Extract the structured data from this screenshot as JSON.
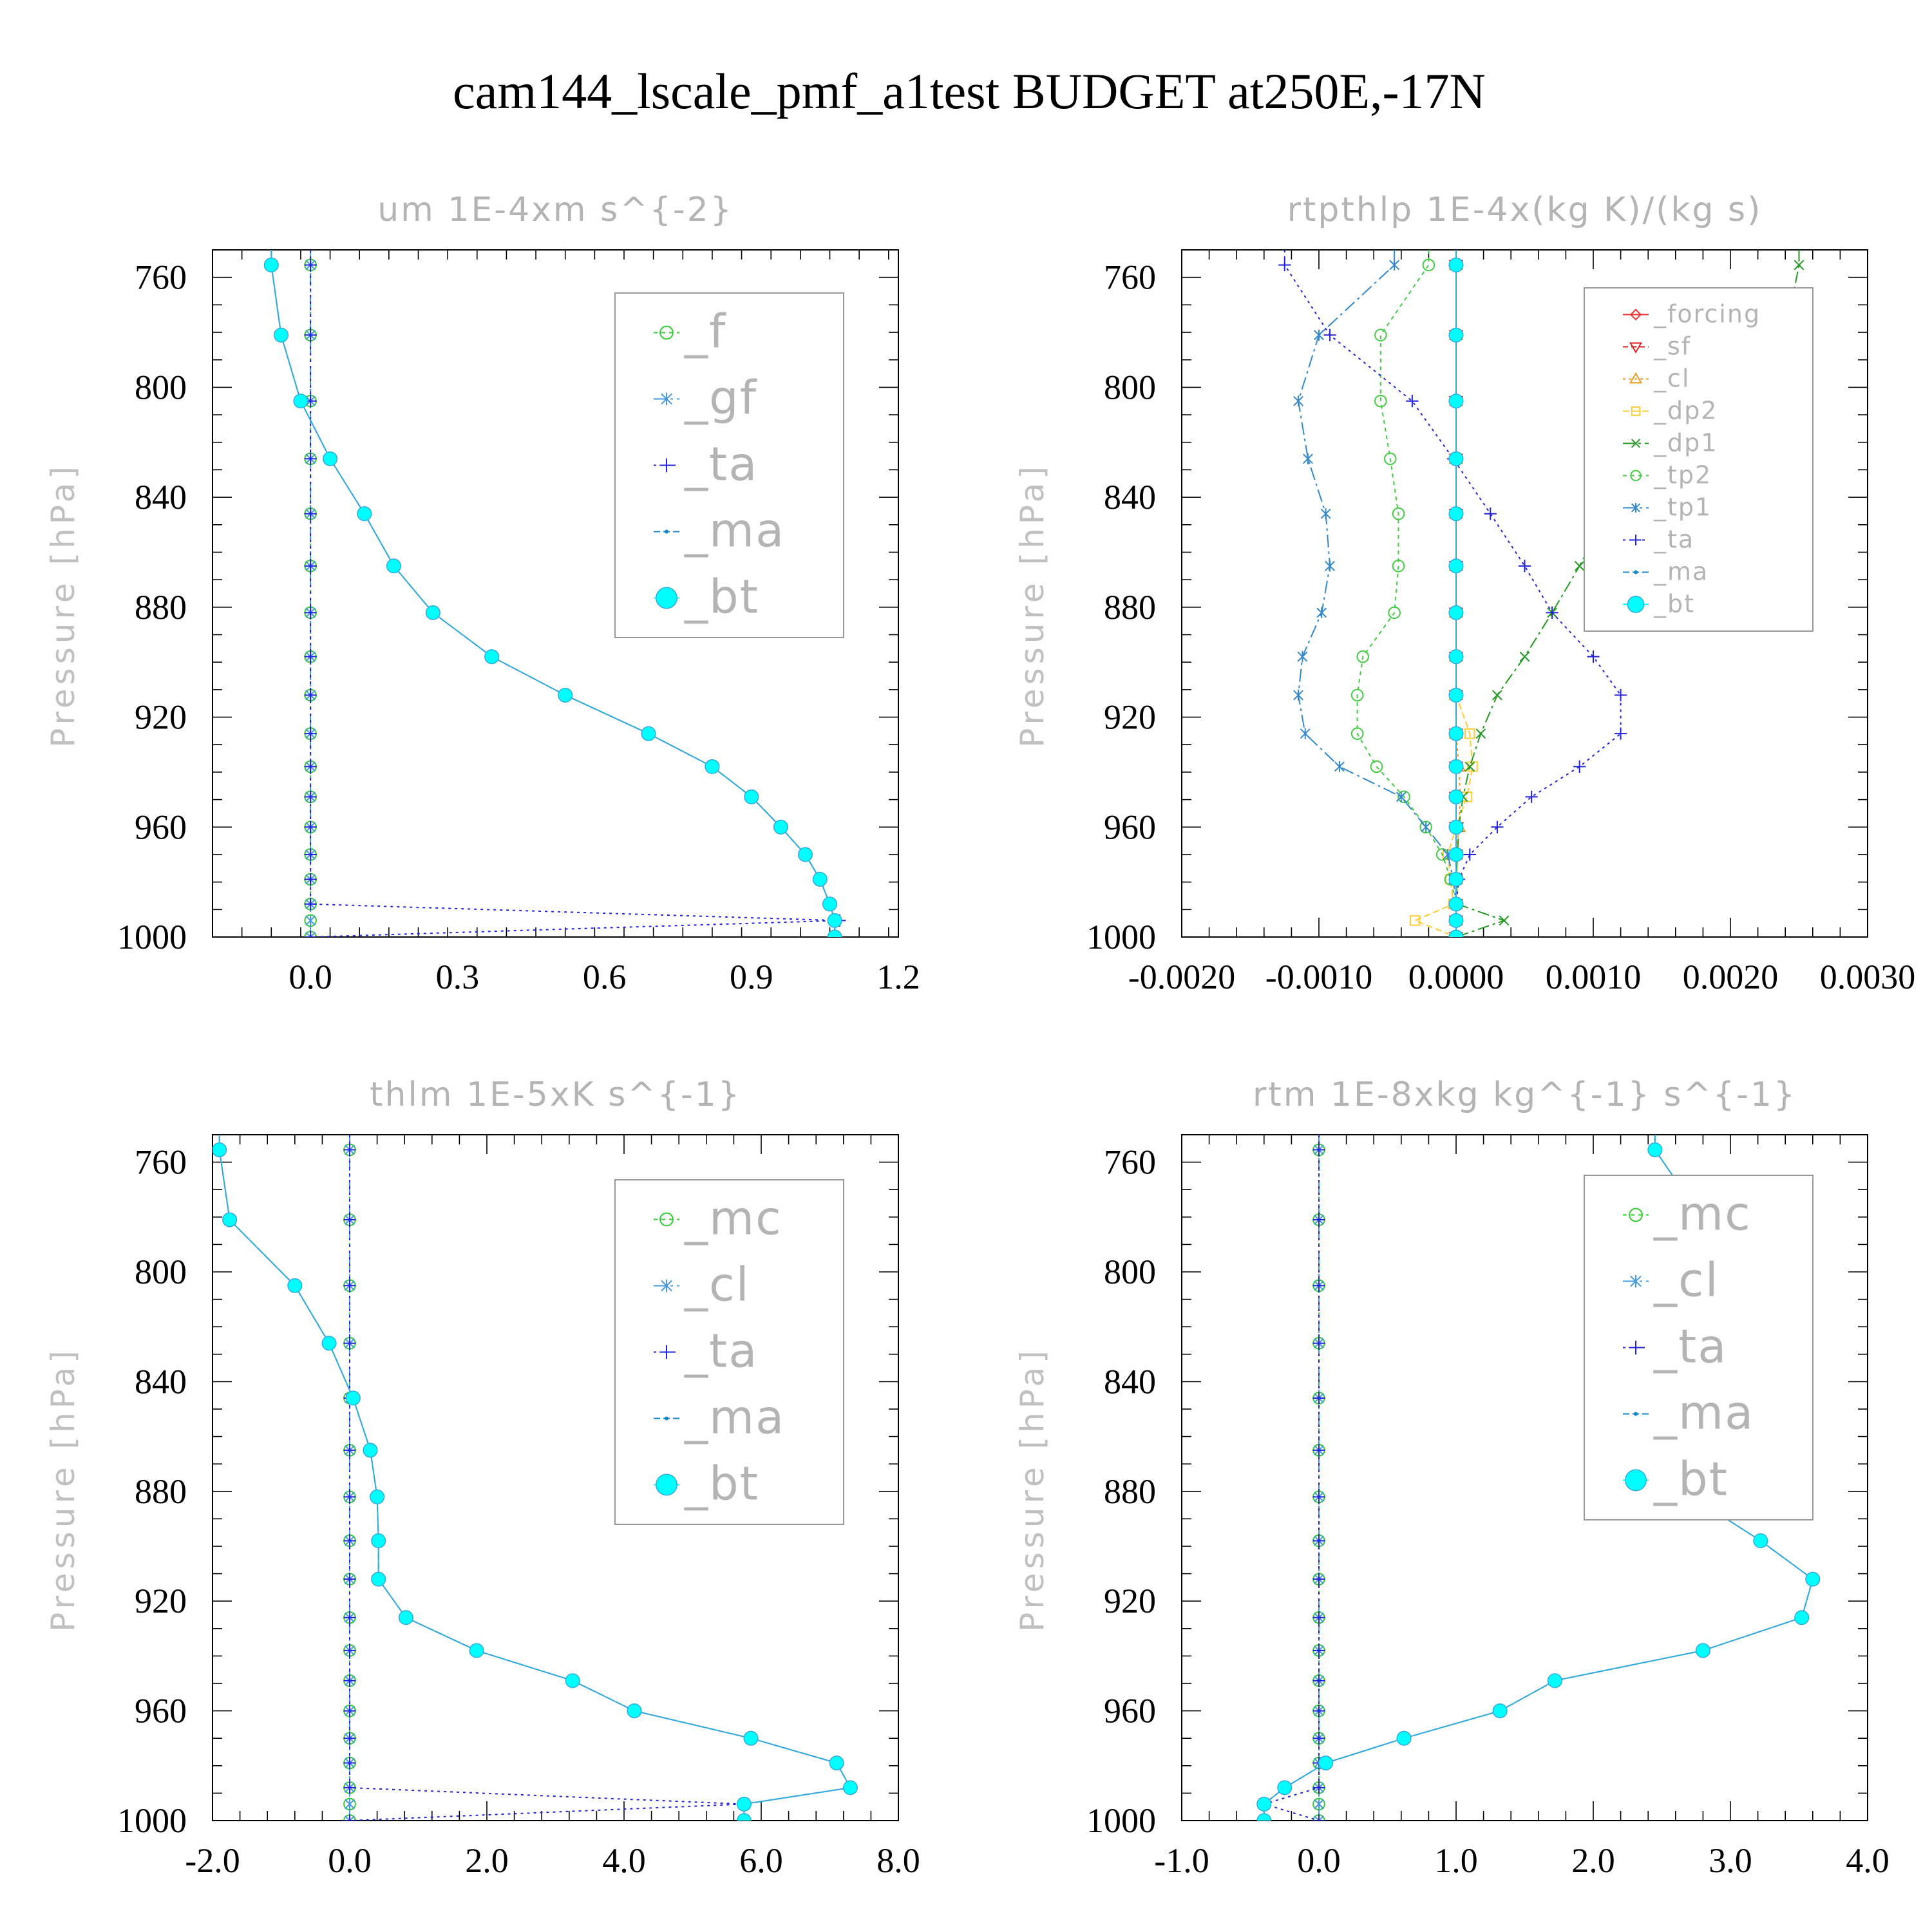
{
  "figure": {
    "title": "cam144_lscale_pmf_a1test  BUDGET at250E,-17N"
  },
  "chart_data": [
    {
      "type": "line",
      "title": "um  1E-4xm s^{-2}",
      "xlabel": "",
      "ylabel": "Pressure [hPa]",
      "xlim": [
        -0.2,
        1.2
      ],
      "ylim": [
        1000,
        750
      ],
      "xticks": [
        "0.0",
        "0.3",
        "0.6",
        "0.9",
        "1.2"
      ],
      "xtick_values": [
        0,
        0.3,
        0.6,
        0.9,
        1.2
      ],
      "yticks": [
        "760",
        "800",
        "840",
        "880",
        "920",
        "960",
        "1000"
      ],
      "ytick_values": [
        760,
        800,
        840,
        880,
        920,
        960,
        1000
      ],
      "legend_position": "top-right",
      "levels": [
        755.5,
        781,
        805,
        826,
        846,
        865,
        882,
        898,
        912,
        926,
        938,
        949,
        960,
        970,
        979,
        988,
        994,
        1000
      ],
      "series": [
        {
          "name": "_f",
          "color": "#33cc33",
          "marker": "circle",
          "dash": "6,6",
          "values": [
            0,
            0,
            0,
            0,
            0,
            0,
            0,
            0,
            0,
            0,
            0,
            0,
            0,
            0,
            0,
            0,
            0,
            0
          ]
        },
        {
          "name": "_gf",
          "color": "#4499dd",
          "marker": "star",
          "dash": "20,6,4,6",
          "values": [
            0,
            0,
            0,
            0,
            0,
            0,
            0,
            0,
            0,
            0,
            0,
            0,
            0,
            0,
            0,
            0,
            0,
            0
          ]
        },
        {
          "name": "_ta",
          "color": "#2222dd",
          "marker": "plus",
          "dash": "4,6",
          "values": [
            0,
            0,
            0,
            0,
            0,
            0,
            0,
            0,
            0,
            0,
            0,
            0,
            0,
            0,
            0,
            0,
            1.08,
            0
          ]
        },
        {
          "name": "_ma",
          "color": "#1188cc",
          "marker": "dot",
          "dash": "10,5",
          "values": [
            -0.08,
            -0.06,
            -0.02,
            0.04,
            0.11,
            0.17,
            0.25,
            0.37,
            0.52,
            0.69,
            0.82,
            0.9,
            0.96,
            1.01,
            1.04,
            1.06,
            1.07,
            1.07
          ]
        },
        {
          "name": "_bt",
          "color": "#00ffff",
          "marker": "bigdot",
          "dash": "",
          "values": [
            -0.08,
            -0.06,
            -0.02,
            0.04,
            0.11,
            0.17,
            0.25,
            0.37,
            0.52,
            0.69,
            0.82,
            0.9,
            0.96,
            1.01,
            1.04,
            1.06,
            1.07,
            1.07
          ]
        }
      ]
    },
    {
      "type": "line",
      "title": "rtpthlp  1E-4x(kg K)/(kg s)",
      "xlabel": "",
      "ylabel": "Pressure [hPa]",
      "xlim": [
        -0.002,
        0.003
      ],
      "ylim": [
        1000,
        750
      ],
      "xticks": [
        "-0.0020",
        "-0.0010",
        "0.0000",
        "0.0010",
        "0.0020",
        "0.0030"
      ],
      "xtick_values": [
        -0.002,
        -0.001,
        0,
        0.001,
        0.002,
        0.003
      ],
      "yticks": [
        "760",
        "800",
        "840",
        "880",
        "920",
        "960",
        "1000"
      ],
      "ytick_values": [
        760,
        800,
        840,
        880,
        920,
        960,
        1000
      ],
      "legend_position": "top-right",
      "levels": [
        755.5,
        781,
        805,
        826,
        846,
        865,
        882,
        898,
        912,
        926,
        938,
        949,
        960,
        970,
        979,
        988,
        994,
        1000
      ],
      "series": [
        {
          "name": "_forcing",
          "color": "#ee3333",
          "marker": "diamond",
          "dash": "",
          "values": [
            0,
            0,
            0,
            0,
            0,
            0,
            0,
            0,
            0,
            0,
            0,
            0,
            0,
            0,
            0,
            0,
            0,
            0
          ]
        },
        {
          "name": "_sf",
          "color": "#dd2222",
          "marker": "tri-down",
          "dash": "8,5",
          "values": [
            0,
            0,
            0,
            0,
            0,
            0,
            0,
            0,
            0,
            0,
            0,
            0,
            0,
            0,
            0,
            0,
            0,
            0
          ]
        },
        {
          "name": "_cl",
          "color": "#ee9922",
          "marker": "tri-up",
          "dash": "4,5",
          "values": [
            0,
            0,
            0,
            0,
            0,
            0,
            0,
            0,
            0,
            0,
            2e-05,
            3e-05,
            2e-05,
            0,
            0,
            0,
            0,
            0
          ]
        },
        {
          "name": "_dp2",
          "color": "#ffcc33",
          "marker": "square",
          "dash": "10,5",
          "values": [
            0,
            0,
            0,
            0,
            0,
            0,
            0,
            0,
            0,
            0.0001,
            0.00012,
            8e-05,
            0,
            -6e-05,
            -4e-05,
            -2e-05,
            -0.0003,
            0
          ]
        },
        {
          "name": "_dp1",
          "color": "#229922",
          "marker": "cross",
          "dash": "18,6,4,6",
          "values": [
            0.0025,
            0.0024,
            0.0019,
            0.0015,
            0.0011,
            0.0009,
            0.0007,
            0.0005,
            0.0003,
            0.00018,
            0.0001,
            5e-05,
            2e-05,
            1e-05,
            0,
            1e-05,
            0.00035,
            0
          ]
        },
        {
          "name": "_tp2",
          "color": "#44cc44",
          "marker": "circle",
          "dash": "6,6",
          "values": [
            -0.0002,
            -0.00055,
            -0.00055,
            -0.00048,
            -0.00042,
            -0.00042,
            -0.00045,
            -0.00068,
            -0.00072,
            -0.00072,
            -0.00058,
            -0.00038,
            -0.00022,
            -0.0001,
            -4e-05,
            0,
            0,
            0
          ]
        },
        {
          "name": "_tp1",
          "color": "#3388cc",
          "marker": "star",
          "dash": "20,6,4,6",
          "values": [
            -0.00045,
            -0.001,
            -0.00115,
            -0.00108,
            -0.00095,
            -0.00092,
            -0.00098,
            -0.00112,
            -0.00115,
            -0.0011,
            -0.00085,
            -0.0004,
            -0.00022,
            -6e-05,
            -2e-05,
            0,
            0,
            0
          ]
        },
        {
          "name": "_ta",
          "color": "#2222dd",
          "marker": "plus",
          "dash": "4,6",
          "values": [
            -0.00125,
            -0.00092,
            -0.00032,
            -2e-05,
            0.00025,
            0.0005,
            0.0007,
            0.001,
            0.0012,
            0.0012,
            0.0009,
            0.00055,
            0.0003,
            0.0001,
            2e-05,
            0,
            0,
            0
          ]
        },
        {
          "name": "_ma",
          "color": "#1188cc",
          "marker": "dot",
          "dash": "10,5",
          "values": [
            0,
            0,
            0,
            0,
            0,
            0,
            0,
            0,
            0,
            0,
            0,
            0,
            0,
            0,
            0,
            0,
            0,
            0
          ]
        },
        {
          "name": "_bt",
          "color": "#00ffff",
          "marker": "bigdot",
          "dash": "",
          "values": [
            0,
            0,
            0,
            0,
            0,
            0,
            0,
            0,
            0,
            0,
            0,
            0,
            0,
            0,
            0,
            0,
            0,
            0
          ]
        }
      ]
    },
    {
      "type": "line",
      "title": "thlm  1E-5xK s^{-1}",
      "xlabel": "",
      "ylabel": "Pressure [hPa]",
      "xlim": [
        -2.0,
        8.0
      ],
      "ylim": [
        1000,
        750
      ],
      "xticks": [
        "-2.0",
        "0.0",
        "2.0",
        "4.0",
        "6.0",
        "8.0"
      ],
      "xtick_values": [
        -2,
        0,
        2,
        4,
        6,
        8
      ],
      "yticks": [
        "760",
        "800",
        "840",
        "880",
        "920",
        "960",
        "1000"
      ],
      "ytick_values": [
        760,
        800,
        840,
        880,
        920,
        960,
        1000
      ],
      "legend_position": "top-right",
      "levels": [
        755.5,
        781,
        805,
        826,
        846,
        865,
        882,
        898,
        912,
        926,
        938,
        949,
        960,
        970,
        979,
        988,
        994,
        1000
      ],
      "series": [
        {
          "name": "_mc",
          "color": "#33cc33",
          "marker": "circle",
          "dash": "6,6",
          "values": [
            0,
            0,
            0,
            0,
            0,
            0,
            0,
            0,
            0,
            0,
            0,
            0,
            0,
            0,
            0,
            0,
            0,
            0
          ]
        },
        {
          "name": "_cl",
          "color": "#4499dd",
          "marker": "star",
          "dash": "20,6,4,6",
          "values": [
            0,
            0,
            0,
            0,
            0,
            0,
            0,
            0,
            0,
            0,
            0,
            0,
            0,
            0,
            0,
            0,
            0,
            0
          ]
        },
        {
          "name": "_ta",
          "color": "#2222dd",
          "marker": "plus",
          "dash": "4,6",
          "values": [
            0,
            0,
            0,
            0,
            0,
            0,
            0,
            0,
            0,
            0,
            0,
            0,
            0,
            0,
            0,
            0,
            5.75,
            0
          ]
        },
        {
          "name": "_ma",
          "color": "#1188cc",
          "marker": "dot",
          "dash": "10,5",
          "values": [
            -1.9,
            -1.75,
            -0.8,
            -0.3,
            0.05,
            0.3,
            0.4,
            0.42,
            0.42,
            0.82,
            1.85,
            3.25,
            4.15,
            5.85,
            7.1,
            7.3,
            5.75,
            5.75
          ]
        },
        {
          "name": "_bt",
          "color": "#00ffff",
          "marker": "bigdot",
          "dash": "",
          "values": [
            -1.9,
            -1.75,
            -0.8,
            -0.3,
            0.05,
            0.3,
            0.4,
            0.42,
            0.42,
            0.82,
            1.85,
            3.25,
            4.15,
            5.85,
            7.1,
            7.3,
            5.75,
            5.75
          ]
        }
      ]
    },
    {
      "type": "line",
      "title": "rtm  1E-8xkg kg^{-1} s^{-1}",
      "xlabel": "",
      "ylabel": "Pressure [hPa]",
      "xlim": [
        -1.0,
        4.0
      ],
      "ylim": [
        1000,
        750
      ],
      "xticks": [
        "-1.0",
        "0.0",
        "1.0",
        "2.0",
        "3.0",
        "4.0"
      ],
      "xtick_values": [
        -1,
        0,
        1,
        2,
        3,
        4
      ],
      "yticks": [
        "760",
        "800",
        "840",
        "880",
        "920",
        "960",
        "1000"
      ],
      "ytick_values": [
        760,
        800,
        840,
        880,
        920,
        960,
        1000
      ],
      "legend_position": "top-right",
      "levels": [
        755.5,
        781,
        805,
        826,
        846,
        865,
        882,
        898,
        912,
        926,
        938,
        949,
        960,
        970,
        979,
        988,
        994,
        1000
      ],
      "series": [
        {
          "name": "_mc",
          "color": "#33cc33",
          "marker": "circle",
          "dash": "6,6",
          "values": [
            0,
            0,
            0,
            0,
            0,
            0,
            0,
            0,
            0,
            0,
            0,
            0,
            0,
            0,
            0,
            0,
            0,
            0
          ]
        },
        {
          "name": "_cl",
          "color": "#4499dd",
          "marker": "star",
          "dash": "20,6,4,6",
          "values": [
            0,
            0,
            0,
            0,
            0,
            0,
            0,
            0,
            0,
            0,
            0,
            0,
            0,
            0,
            0,
            0,
            0,
            0
          ]
        },
        {
          "name": "_ta",
          "color": "#2222dd",
          "marker": "plus",
          "dash": "4,6",
          "values": [
            0,
            0,
            0,
            0,
            0,
            0,
            0,
            0,
            0,
            0,
            0,
            0,
            0,
            0,
            0,
            0,
            -0.4,
            0
          ]
        },
        {
          "name": "_ma",
          "color": "#1188cc",
          "marker": "dot",
          "dash": "10,5",
          "values": [
            2.45,
            2.8,
            2.85,
            2.65,
            2.4,
            2.42,
            2.72,
            3.22,
            3.6,
            3.52,
            2.8,
            1.72,
            1.32,
            0.62,
            0.05,
            -0.25,
            -0.4,
            -0.4
          ]
        },
        {
          "name": "_bt",
          "color": "#00ffff",
          "marker": "bigdot",
          "dash": "",
          "values": [
            2.45,
            2.8,
            2.85,
            2.65,
            2.4,
            2.42,
            2.72,
            3.22,
            3.6,
            3.52,
            2.8,
            1.72,
            1.32,
            0.62,
            0.05,
            -0.25,
            -0.4,
            -0.4
          ]
        }
      ]
    }
  ]
}
